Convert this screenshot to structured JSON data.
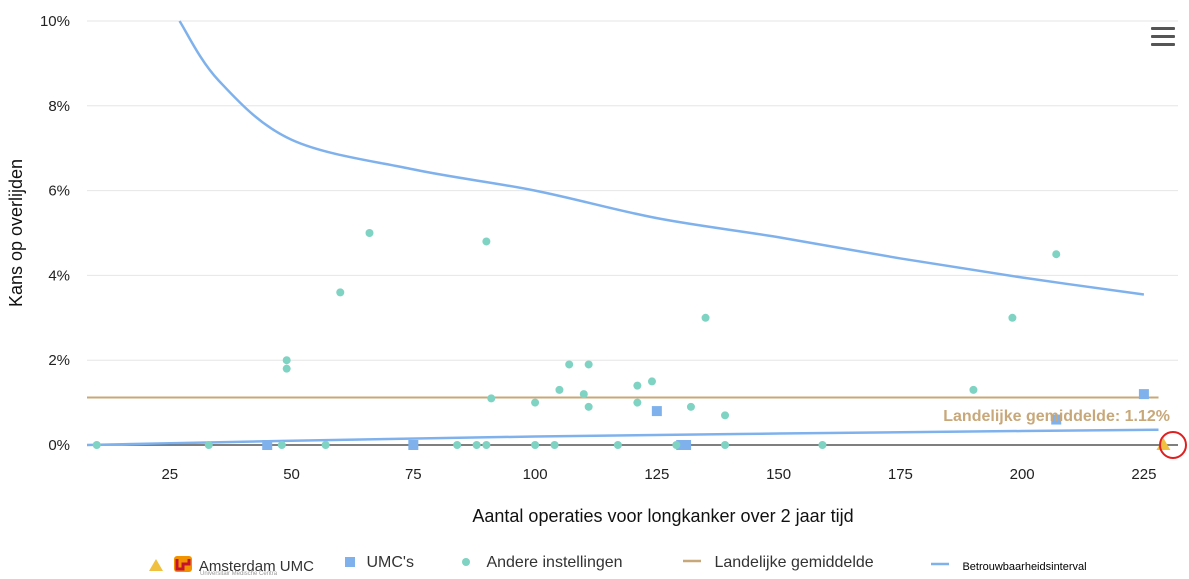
{
  "chart_data": {
    "type": "scatter",
    "xlabel": "Aantal operaties voor longkanker over 2 jaar tijd",
    "ylabel": "Kans op overlijden",
    "xlim": [
      8,
      232
    ],
    "ylim": [
      0,
      10
    ],
    "x_ticks": [
      "25",
      "50",
      "75",
      "100",
      "125",
      "150",
      "175",
      "200",
      "225"
    ],
    "x_tick_values": [
      25,
      50,
      75,
      100,
      125,
      150,
      175,
      200,
      225
    ],
    "y_ticks": [
      "0%",
      "2%",
      "4%",
      "6%",
      "8%",
      "10%"
    ],
    "y_tick_values": [
      0,
      2,
      4,
      6,
      8,
      10
    ],
    "grid": "horizontal",
    "national_average": 1.12,
    "national_average_label": "Landelijke gemiddelde: 1.12%",
    "series": [
      {
        "name": "Amsterdam UMC",
        "marker": "triangle",
        "color": "#f0c040",
        "points": [
          [
            229,
            0
          ]
        ]
      },
      {
        "name": "UMC's",
        "marker": "square",
        "color": "#7fb2ec",
        "points": [
          [
            45,
            0
          ],
          [
            75,
            0
          ],
          [
            125,
            0.8
          ],
          [
            130,
            0
          ],
          [
            131,
            0
          ],
          [
            225,
            1.2
          ],
          [
            207,
            0.6
          ]
        ]
      },
      {
        "name": "Andere instellingen",
        "marker": "circle",
        "color": "#7fd3c3",
        "points": [
          [
            10,
            0
          ],
          [
            33,
            0
          ],
          [
            48,
            0
          ],
          [
            49,
            2.0
          ],
          [
            49,
            1.8
          ],
          [
            57,
            0
          ],
          [
            60,
            3.6
          ],
          [
            66,
            5.0
          ],
          [
            84,
            0
          ],
          [
            88,
            0
          ],
          [
            90,
            0
          ],
          [
            90,
            4.8
          ],
          [
            91,
            1.1
          ],
          [
            100,
            1.0
          ],
          [
            100,
            0
          ],
          [
            104,
            0
          ],
          [
            105,
            1.3
          ],
          [
            107,
            1.9
          ],
          [
            110,
            1.2
          ],
          [
            111,
            1.9
          ],
          [
            111,
            0.9
          ],
          [
            117,
            0
          ],
          [
            121,
            1.4
          ],
          [
            121,
            1.0
          ],
          [
            124,
            1.5
          ],
          [
            129,
            0
          ],
          [
            132,
            0.9
          ],
          [
            135,
            3.0
          ],
          [
            139,
            0.7
          ],
          [
            139,
            0
          ],
          [
            159,
            0
          ],
          [
            190,
            1.3
          ],
          [
            198,
            3.0
          ],
          [
            207,
            4.5
          ]
        ]
      }
    ],
    "lines": [
      {
        "name": "Landelijke gemiddelde",
        "color": "#c8a87a",
        "kind": "constant",
        "value": 1.12,
        "x_range": [
          8,
          228
        ]
      },
      {
        "name": "Betrouwbaarheidsinterval",
        "color": "#7fb2ec",
        "kind": "upper",
        "points": [
          [
            27,
            10.0
          ],
          [
            35,
            8.6
          ],
          [
            50,
            7.2
          ],
          [
            75,
            6.5
          ],
          [
            100,
            6.0
          ],
          [
            125,
            5.35
          ],
          [
            150,
            4.9
          ],
          [
            175,
            4.4
          ],
          [
            200,
            3.95
          ],
          [
            225,
            3.55
          ]
        ]
      },
      {
        "name": "Betrouwbaarheidsinterval",
        "color": "#7fb2ec",
        "kind": "lower",
        "points": [
          [
            8,
            0.0
          ],
          [
            50,
            0.1
          ],
          [
            100,
            0.2
          ],
          [
            150,
            0.27
          ],
          [
            200,
            0.33
          ],
          [
            228,
            0.36
          ]
        ]
      }
    ]
  },
  "legend": {
    "amsterdam": "Amsterdam UMC",
    "amsterdam_sub": "Universitair Medische Centra",
    "umc": "UMC's",
    "andere": "Andere instellingen",
    "landelijk": "Landelijke gemiddelde",
    "interval": "Betrouwbaarheidsinterval"
  },
  "colors": {
    "triangle": "#f0c040",
    "square": "#7fb2ec",
    "circle": "#7fd3c3",
    "average": "#c8a87a",
    "interval": "#7fb2ec",
    "highlight": "#e02020",
    "logo_red": "#c4122f",
    "logo_orange": "#f39200"
  }
}
